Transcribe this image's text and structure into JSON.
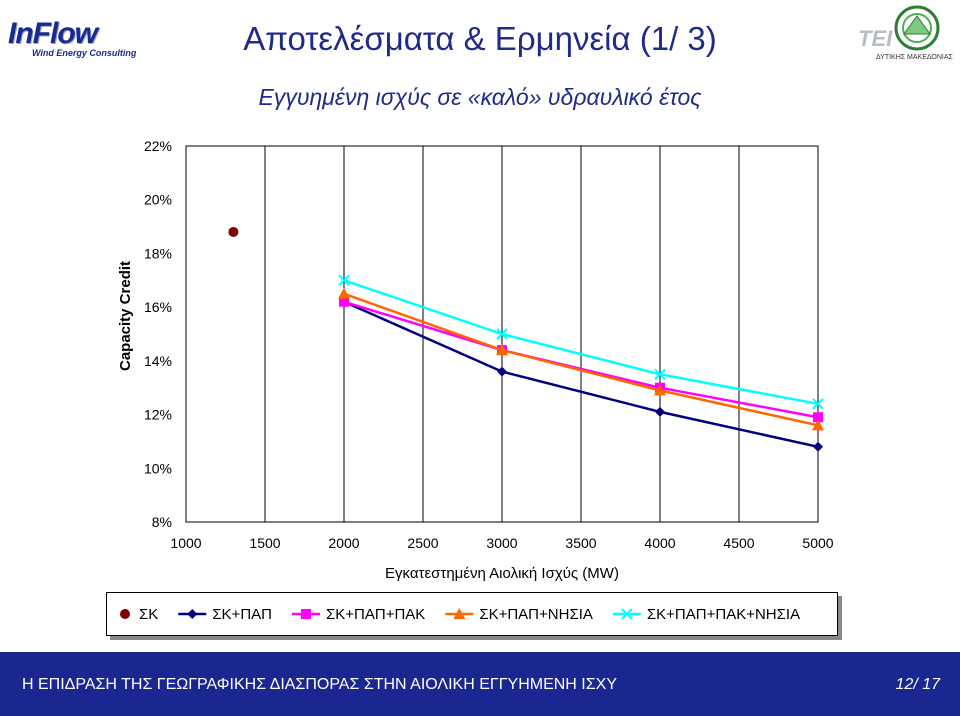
{
  "header": {
    "logo_left_brand": "InFlow",
    "logo_left_tagline": "Wind Energy Consulting",
    "logo_right_text": "TEI",
    "logo_right_sub": "ΔΥΤΙΚΗΣ ΜΑΚΕΔΟΝΙΑΣ",
    "title": "Αποτελέσματα & Ερμηνεία (1/ 3)",
    "subtitle": "Εγγυημένη ισχύς σε «καλό» υδραυλικό έτος"
  },
  "chart_data": {
    "type": "line",
    "xlabel": "Εγκατεστημένη Αιολική Ισχύς (MW)",
    "ylabel": "Capacity Credit",
    "xlim": [
      1000,
      5000
    ],
    "ylim": [
      8,
      22
    ],
    "x_ticks": [
      "1000",
      "1500",
      "2000",
      "2500",
      "3000",
      "3500",
      "4000",
      "4500",
      "5000"
    ],
    "y_ticks": [
      "8%",
      "10%",
      "12%",
      "14%",
      "16%",
      "18%",
      "20%",
      "22%"
    ],
    "y_tick_values": [
      8,
      10,
      12,
      14,
      16,
      18,
      20,
      22
    ],
    "x_tick_values": [
      1000,
      1500,
      2000,
      2500,
      3000,
      3500,
      4000,
      4500,
      5000
    ],
    "legend_position": "bottom",
    "series": [
      {
        "name": "ΣΚ",
        "color": "#800000",
        "marker": "circle",
        "line": false,
        "x": [
          1300
        ],
        "y": [
          18.8
        ]
      },
      {
        "name": "ΣΚ+ΠΑΠ",
        "color": "#000080",
        "marker": "diamond",
        "line": true,
        "x": [
          2000,
          3000,
          4000,
          5000
        ],
        "y": [
          16.2,
          13.6,
          12.1,
          10.8
        ]
      },
      {
        "name": "ΣΚ+ΠΑΠ+ΠΑΚ",
        "color": "#ff00ff",
        "marker": "square",
        "line": true,
        "x": [
          2000,
          3000,
          4000,
          5000
        ],
        "y": [
          16.2,
          14.4,
          13.0,
          11.9
        ]
      },
      {
        "name": "ΣΚ+ΠΑΠ+ΝΗΣΙΑ",
        "color": "#ff6600",
        "marker": "triangle",
        "line": true,
        "x": [
          2000,
          3000,
          4000,
          5000
        ],
        "y": [
          16.5,
          14.4,
          12.9,
          11.6
        ]
      },
      {
        "name": "ΣΚ+ΠΑΠ+ΠΑΚ+ΝΗΣΙΑ",
        "color": "#00ffff",
        "marker": "x",
        "line": true,
        "x": [
          2000,
          3000,
          4000,
          5000
        ],
        "y": [
          17.0,
          15.0,
          13.5,
          12.4
        ]
      }
    ]
  },
  "footer": {
    "text": "Η ΕΠΙΔΡΑΣΗ ΤΗΣ ΓΕΩΓΡΑΦΙΚΗΣ ΔΙΑΣΠΟΡΑΣ ΣΤΗΝ ΑΙΟΛΙΚΗ ΕΓΓΥΗΜΕΝΗ ΙΣΧΥ",
    "page": "12/ 17"
  }
}
